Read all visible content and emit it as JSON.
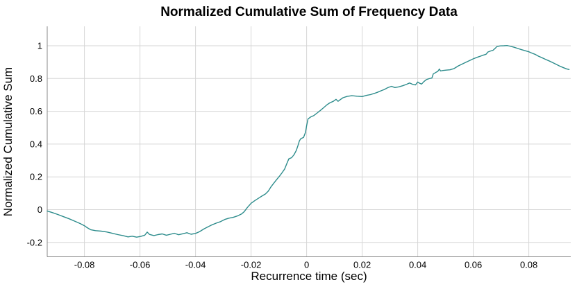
{
  "chart_data": {
    "type": "line",
    "title": "Normalized Cumulative Sum of Frequency Data",
    "xlabel": "Recurrence time (sec)",
    "ylabel": "Normalized Cumulative Sum",
    "xlim": [
      -0.0934,
      0.0951
    ],
    "ylim": [
      -0.2875,
      1.1183
    ],
    "x_ticks": [
      -0.08,
      -0.06,
      -0.04,
      -0.02,
      0,
      0.02,
      0.04,
      0.06,
      0.08
    ],
    "x_tick_labels": [
      "-0.08",
      "-0.06",
      "-0.04",
      "-0.02",
      "0",
      "0.02",
      "0.04",
      "0.06",
      "0.08"
    ],
    "y_ticks": [
      1,
      0.8,
      0.6,
      0.4,
      0.2,
      0,
      -0.2
    ],
    "y_tick_labels": [
      "1",
      "0.8",
      "0.6",
      "0.4",
      "0.2",
      "0",
      "-0.2"
    ],
    "grid": true,
    "legend_position": "none",
    "line_color": "#2d8c8c",
    "grid_color": "#d6d6d6",
    "axis_color": "#8a8a8a",
    "background": "#ffffff",
    "series": [
      {
        "name": "normalized cumulative sum",
        "points": [
          [
            -0.0934,
            -0.008
          ],
          [
            -0.0915,
            -0.018
          ],
          [
            -0.0895,
            -0.03
          ],
          [
            -0.0875,
            -0.043
          ],
          [
            -0.0855,
            -0.056
          ],
          [
            -0.0835,
            -0.07
          ],
          [
            -0.0815,
            -0.085
          ],
          [
            -0.08,
            -0.098
          ],
          [
            -0.079,
            -0.11
          ],
          [
            -0.0778,
            -0.122
          ],
          [
            -0.076,
            -0.128
          ],
          [
            -0.074,
            -0.131
          ],
          [
            -0.072,
            -0.136
          ],
          [
            -0.07,
            -0.144
          ],
          [
            -0.068,
            -0.152
          ],
          [
            -0.066,
            -0.159
          ],
          [
            -0.0643,
            -0.166
          ],
          [
            -0.0628,
            -0.162
          ],
          [
            -0.0612,
            -0.168
          ],
          [
            -0.0597,
            -0.163
          ],
          [
            -0.0583,
            -0.156
          ],
          [
            -0.0574,
            -0.137
          ],
          [
            -0.0566,
            -0.151
          ],
          [
            -0.055,
            -0.158
          ],
          [
            -0.0535,
            -0.152
          ],
          [
            -0.052,
            -0.148
          ],
          [
            -0.0505,
            -0.156
          ],
          [
            -0.049,
            -0.15
          ],
          [
            -0.0476,
            -0.144
          ],
          [
            -0.0461,
            -0.153
          ],
          [
            -0.0446,
            -0.147
          ],
          [
            -0.0431,
            -0.141
          ],
          [
            -0.0416,
            -0.15
          ],
          [
            -0.04,
            -0.145
          ],
          [
            -0.0386,
            -0.135
          ],
          [
            -0.037,
            -0.118
          ],
          [
            -0.0355,
            -0.105
          ],
          [
            -0.034,
            -0.092
          ],
          [
            -0.0325,
            -0.082
          ],
          [
            -0.031,
            -0.073
          ],
          [
            -0.0295,
            -0.06
          ],
          [
            -0.028,
            -0.052
          ],
          [
            -0.0264,
            -0.047
          ],
          [
            -0.025,
            -0.039
          ],
          [
            -0.0235,
            -0.027
          ],
          [
            -0.0225,
            -0.013
          ],
          [
            -0.0214,
            0.012
          ],
          [
            -0.02,
            0.039
          ],
          [
            -0.0186,
            0.056
          ],
          [
            -0.017,
            0.073
          ],
          [
            -0.0159,
            0.085
          ],
          [
            -0.0148,
            0.096
          ],
          [
            -0.0138,
            0.113
          ],
          [
            -0.0128,
            0.14
          ],
          [
            -0.0118,
            0.162
          ],
          [
            -0.0107,
            0.185
          ],
          [
            -0.0097,
            0.206
          ],
          [
            -0.0088,
            0.226
          ],
          [
            -0.0079,
            0.248
          ],
          [
            -0.0071,
            0.282
          ],
          [
            -0.0064,
            0.31
          ],
          [
            -0.0054,
            0.317
          ],
          [
            -0.0045,
            0.336
          ],
          [
            -0.0037,
            0.362
          ],
          [
            -0.0031,
            0.392
          ],
          [
            -0.0026,
            0.42
          ],
          [
            -0.0021,
            0.433
          ],
          [
            -0.0011,
            0.441
          ],
          [
            -0.0004,
            0.472
          ],
          [
            0.0,
            0.512
          ],
          [
            0.0005,
            0.553
          ],
          [
            0.0014,
            0.565
          ],
          [
            0.0026,
            0.574
          ],
          [
            0.0038,
            0.59
          ],
          [
            0.005,
            0.606
          ],
          [
            0.0062,
            0.623
          ],
          [
            0.0072,
            0.638
          ],
          [
            0.0083,
            0.651
          ],
          [
            0.0096,
            0.661
          ],
          [
            0.0106,
            0.673
          ],
          [
            0.0113,
            0.661
          ],
          [
            0.0121,
            0.671
          ],
          [
            0.0131,
            0.683
          ],
          [
            0.0146,
            0.691
          ],
          [
            0.0163,
            0.695
          ],
          [
            0.0181,
            0.692
          ],
          [
            0.02,
            0.69
          ],
          [
            0.0216,
            0.697
          ],
          [
            0.023,
            0.702
          ],
          [
            0.0245,
            0.71
          ],
          [
            0.0255,
            0.716
          ],
          [
            0.027,
            0.727
          ],
          [
            0.028,
            0.733
          ],
          [
            0.0292,
            0.744
          ],
          [
            0.0305,
            0.752
          ],
          [
            0.0318,
            0.745
          ],
          [
            0.0332,
            0.749
          ],
          [
            0.0346,
            0.756
          ],
          [
            0.036,
            0.765
          ],
          [
            0.0371,
            0.773
          ],
          [
            0.0382,
            0.764
          ],
          [
            0.0392,
            0.761
          ],
          [
            0.04,
            0.779
          ],
          [
            0.0407,
            0.771
          ],
          [
            0.0414,
            0.766
          ],
          [
            0.0422,
            0.781
          ],
          [
            0.0431,
            0.793
          ],
          [
            0.0441,
            0.799
          ],
          [
            0.0451,
            0.803
          ],
          [
            0.0456,
            0.828
          ],
          [
            0.0466,
            0.838
          ],
          [
            0.0472,
            0.843
          ],
          [
            0.0478,
            0.858
          ],
          [
            0.0482,
            0.846
          ],
          [
            0.0491,
            0.849
          ],
          [
            0.0502,
            0.851
          ],
          [
            0.0516,
            0.853
          ],
          [
            0.0531,
            0.861
          ],
          [
            0.0546,
            0.877
          ],
          [
            0.0561,
            0.889
          ],
          [
            0.0572,
            0.898
          ],
          [
            0.0586,
            0.909
          ],
          [
            0.06,
            0.92
          ],
          [
            0.0613,
            0.929
          ],
          [
            0.0622,
            0.934
          ],
          [
            0.0635,
            0.942
          ],
          [
            0.0646,
            0.948
          ],
          [
            0.0653,
            0.962
          ],
          [
            0.0663,
            0.968
          ],
          [
            0.0671,
            0.972
          ],
          [
            0.068,
            0.986
          ],
          [
            0.0685,
            0.995
          ],
          [
            0.0697,
            0.999
          ],
          [
            0.071,
            1.0
          ],
          [
            0.0722,
            1.001
          ],
          [
            0.0731,
            0.998
          ],
          [
            0.0746,
            0.991
          ],
          [
            0.0761,
            0.983
          ],
          [
            0.0772,
            0.977
          ],
          [
            0.0786,
            0.97
          ],
          [
            0.08,
            0.963
          ],
          [
            0.0811,
            0.955
          ],
          [
            0.0822,
            0.948
          ],
          [
            0.0835,
            0.936
          ],
          [
            0.0847,
            0.927
          ],
          [
            0.086,
            0.917
          ],
          [
            0.0872,
            0.908
          ],
          [
            0.0885,
            0.898
          ],
          [
            0.0897,
            0.888
          ],
          [
            0.091,
            0.877
          ],
          [
            0.0922,
            0.868
          ],
          [
            0.0935,
            0.859
          ],
          [
            0.0945,
            0.855
          ]
        ]
      }
    ]
  }
}
